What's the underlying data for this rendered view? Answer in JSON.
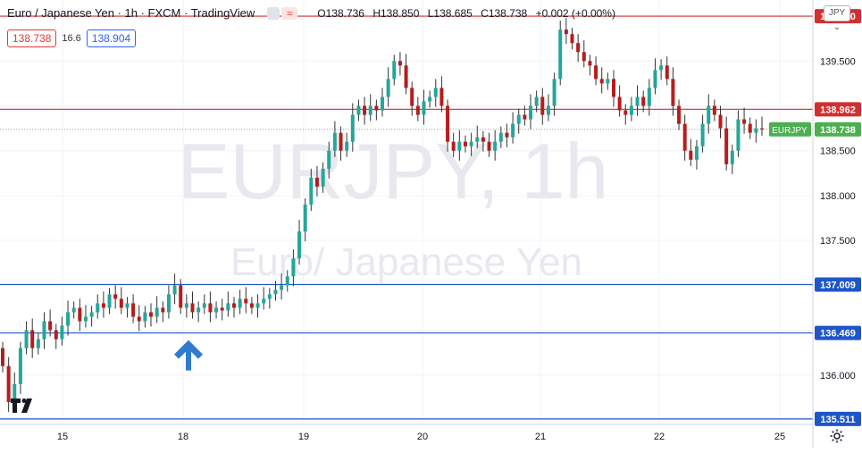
{
  "header": {
    "title": "Euro / Japanese Yen · 1h · FXCM · TradingView",
    "wave_symbol": "≈",
    "ohlc": {
      "open_label": "O",
      "open": "138.736",
      "high_label": "H",
      "high": "138.850",
      "low_label": "L",
      "low": "138.685",
      "close_label": "C",
      "close": "138.738",
      "change": "+0.002 (+0.00%)"
    }
  },
  "quote": {
    "sell": "138.738",
    "spread": "16.6",
    "buy": "138.904"
  },
  "currency_button": "JPY ⌄",
  "watermark": {
    "symbol": "EURJPY, 1h",
    "name": "Euro/ Japanese Yen"
  },
  "colors": {
    "up": "#26a69a",
    "down": "#b71c1c",
    "resistance": "#d32f2f",
    "support": "#1e56c8",
    "last_price": "#4caf50",
    "arrow": "#2e7bcf"
  },
  "chart_data": {
    "type": "candlestick",
    "symbol": "EURJPY",
    "timeframe": "1h",
    "x_ticks": [
      "15",
      "18",
      "19",
      "20",
      "21",
      "22",
      "25"
    ],
    "y_ticks": [
      "140.000",
      "139.500",
      "139.000",
      "138.500",
      "138.000",
      "137.500",
      "137.000",
      "136.500",
      "136.000"
    ],
    "ylim": [
      135.45,
      140.18
    ],
    "grid": true,
    "horizontal_levels": [
      {
        "label": "140.000",
        "value": 140.0,
        "kind": "resistance"
      },
      {
        "label": "138.962",
        "value": 138.962,
        "kind": "resistance"
      },
      {
        "label": "137.009",
        "value": 137.009,
        "kind": "support"
      },
      {
        "label": "136.469",
        "value": 136.469,
        "kind": "support"
      },
      {
        "label": "135.511",
        "value": 135.511,
        "kind": "support"
      }
    ],
    "last_price": {
      "symbol_label": "EURJPY",
      "value": "138.738"
    },
    "annotation": {
      "type": "up-arrow",
      "near_x_tick": "18",
      "near_value": 136.25
    },
    "candles_close": [
      136.1,
      135.7,
      135.9,
      136.3,
      136.5,
      136.3,
      136.4,
      136.6,
      136.5,
      136.4,
      136.55,
      136.7,
      136.75,
      136.6,
      136.65,
      136.7,
      136.8,
      136.75,
      136.9,
      136.85,
      136.75,
      136.8,
      136.65,
      136.6,
      136.7,
      136.65,
      136.75,
      136.7,
      136.9,
      137.0,
      136.75,
      136.8,
      136.7,
      136.75,
      136.8,
      136.7,
      136.75,
      136.72,
      136.8,
      136.75,
      136.85,
      136.8,
      136.75,
      136.8,
      136.85,
      136.9,
      136.95,
      137.0,
      137.1,
      137.3,
      137.6,
      137.9,
      138.2,
      138.1,
      138.3,
      138.5,
      138.7,
      138.5,
      138.6,
      138.9,
      139.0,
      138.9,
      139.0,
      138.95,
      139.1,
      139.3,
      139.5,
      139.45,
      139.2,
      139.0,
      138.9,
      139.05,
      139.1,
      139.2,
      139.0,
      138.6,
      138.5,
      138.6,
      138.55,
      138.6,
      138.65,
      138.6,
      138.5,
      138.6,
      138.7,
      138.65,
      138.8,
      138.9,
      138.85,
      139.0,
      139.1,
      138.9,
      139.0,
      139.3,
      139.85,
      139.8,
      139.7,
      139.6,
      139.5,
      139.45,
      139.3,
      139.25,
      139.3,
      139.1,
      138.95,
      138.9,
      139.0,
      139.1,
      139.0,
      139.2,
      139.4,
      139.45,
      139.3,
      139.0,
      138.8,
      138.5,
      138.4,
      138.55,
      138.8,
      139.0,
      138.9,
      138.75,
      138.35,
      138.5,
      138.85,
      138.8,
      138.7,
      138.75,
      138.738
    ]
  }
}
